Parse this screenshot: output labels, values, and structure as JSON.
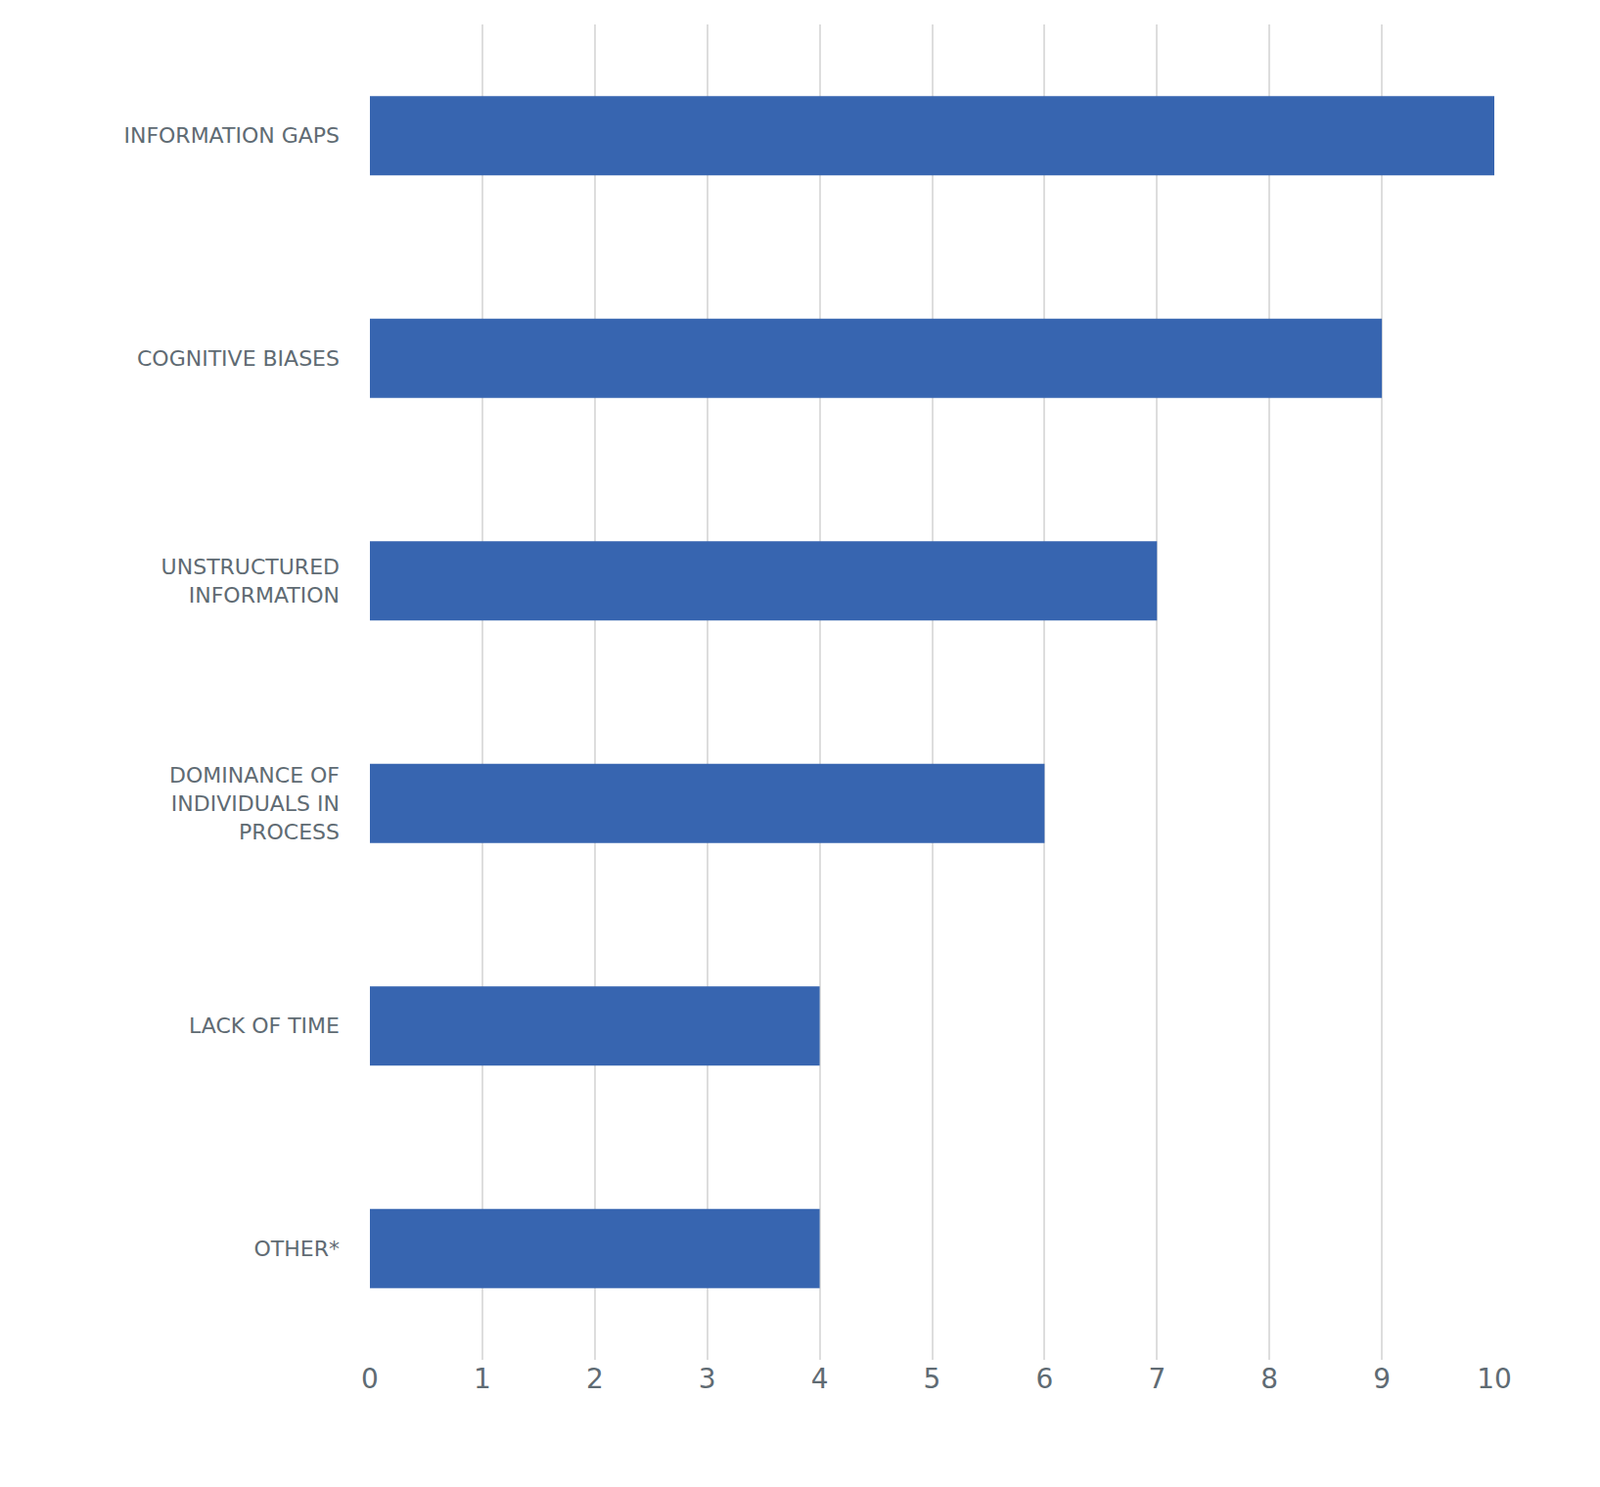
{
  "chart_data": {
    "type": "bar",
    "orientation": "horizontal",
    "categories": [
      "INFORMATION GAPS",
      "COGNITIVE BIASES",
      "UNSTRUCTURED INFORMATION",
      "DOMINANCE OF INDIVIDUALS IN PROCESS",
      "LACK OF TIME",
      "OTHER*"
    ],
    "values": [
      10,
      9,
      7,
      6,
      4,
      4
    ],
    "color": "#3765b0",
    "xlim": [
      0,
      10
    ],
    "xticks": [
      0,
      1,
      2,
      3,
      4,
      5,
      6,
      7,
      8,
      9,
      10
    ],
    "grid": true
  }
}
